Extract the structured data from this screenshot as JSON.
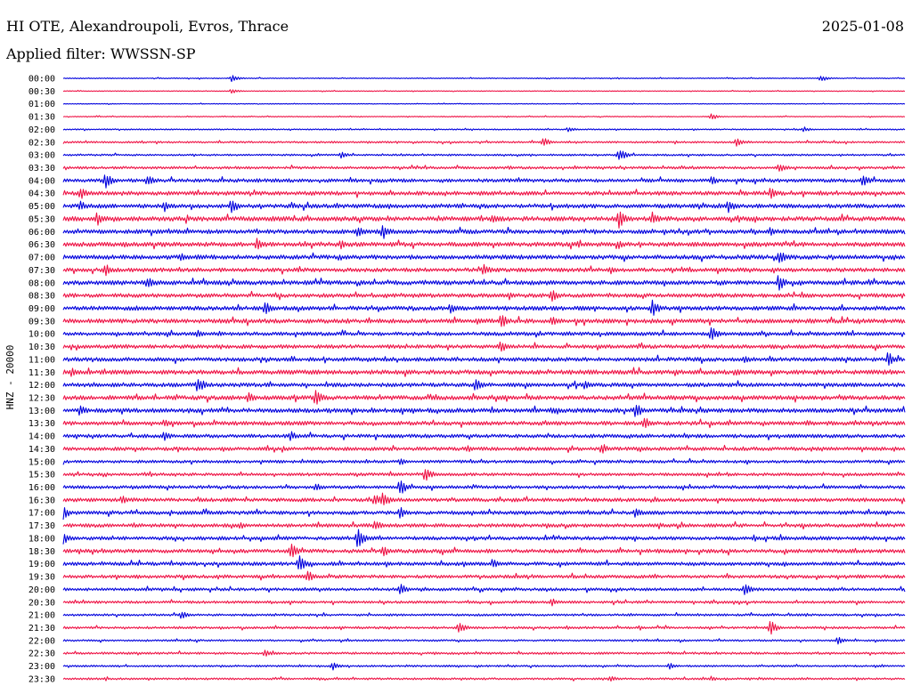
{
  "header": {
    "station": "HI OTE, Alexandroupoli, Evros, Thrace",
    "date": "2025-01-08",
    "filter": "Applied filter: WWSSN-SP"
  },
  "colors": {
    "blue": "#0000dd",
    "red": "#ee1144",
    "background": "#ffffff",
    "text": "#000000"
  },
  "chart_data": {
    "type": "line",
    "subtype": "helicorder",
    "title": "HI OTE, Alexandroupoli, Evros, Thrace",
    "ylabel": "HNZ - 20000",
    "legend": "none",
    "grid": false,
    "row_labels": [
      "00:00",
      "00:30",
      "01:00",
      "01:30",
      "02:00",
      "02:30",
      "03:00",
      "03:30",
      "04:00",
      "04:30",
      "05:00",
      "05:30",
      "06:00",
      "06:30",
      "07:00",
      "07:30",
      "08:00",
      "08:30",
      "09:00",
      "09:30",
      "10:00",
      "10:30",
      "11:00",
      "11:30",
      "12:00",
      "12:30",
      "13:00",
      "13:30",
      "14:00",
      "14:30",
      "15:00",
      "15:30",
      "16:00",
      "16:30",
      "17:00",
      "17:30",
      "18:00",
      "18:30",
      "19:00",
      "19:30",
      "20:00",
      "20:30",
      "21:00",
      "21:30",
      "22:00",
      "22:30",
      "23:00",
      "23:30"
    ],
    "row_colors": [
      "blue",
      "red",
      "blue",
      "red",
      "blue",
      "red",
      "blue",
      "red",
      "blue",
      "red",
      "blue",
      "red",
      "blue",
      "red",
      "blue",
      "red",
      "blue",
      "red",
      "blue",
      "red",
      "blue",
      "red",
      "blue",
      "red",
      "blue",
      "red",
      "blue",
      "red",
      "blue",
      "red",
      "blue",
      "red",
      "blue",
      "red",
      "blue",
      "red",
      "blue",
      "red",
      "blue",
      "red",
      "blue",
      "red",
      "blue",
      "red",
      "blue",
      "red",
      "blue",
      "red"
    ],
    "noise_level": [
      0.5,
      0.4,
      0.4,
      0.5,
      0.7,
      1.0,
      1.0,
      1.4,
      2.0,
      2.2,
      2.3,
      2.5,
      2.3,
      2.4,
      2.4,
      2.2,
      2.4,
      2.2,
      2.3,
      2.4,
      2.0,
      2.1,
      2.2,
      2.4,
      2.2,
      2.4,
      2.4,
      2.2,
      2.0,
      2.0,
      1.6,
      1.6,
      1.8,
      2.0,
      2.0,
      2.0,
      2.0,
      2.1,
      2.0,
      1.8,
      1.6,
      1.4,
      1.2,
      1.3,
      1.0,
      1.2,
      1.0,
      1.1
    ],
    "events": [
      [
        [
          0.2,
          4
        ],
        [
          0.9,
          4
        ]
      ],
      [
        [
          0.2,
          3
        ]
      ],
      [],
      [
        [
          0.77,
          4
        ]
      ],
      [
        [
          0.88,
          3
        ],
        [
          0.6,
          3
        ]
      ],
      [
        [
          0.57,
          6
        ],
        [
          0.8,
          5
        ]
      ],
      [
        [
          0.66,
          8
        ],
        [
          0.33,
          4
        ]
      ],
      [
        [
          0.85,
          6
        ],
        [
          0.53,
          3
        ]
      ],
      [
        [
          0.05,
          10
        ],
        [
          0.1,
          7
        ],
        [
          0.77,
          6
        ],
        [
          0.95,
          8
        ]
      ],
      [
        [
          0.02,
          8
        ],
        [
          0.84,
          7
        ]
      ],
      [
        [
          0.02,
          7
        ],
        [
          0.12,
          7
        ],
        [
          0.2,
          9
        ],
        [
          0.79,
          8
        ]
      ],
      [
        [
          0.04,
          9
        ],
        [
          0.51,
          6
        ],
        [
          0.66,
          12
        ],
        [
          0.7,
          8
        ]
      ],
      [
        [
          0.35,
          7
        ],
        [
          0.38,
          9
        ],
        [
          0.84,
          6
        ]
      ],
      [
        [
          0.23,
          8
        ],
        [
          0.33,
          6
        ],
        [
          0.66,
          5
        ]
      ],
      [
        [
          0.14,
          6
        ],
        [
          0.85,
          9
        ]
      ],
      [
        [
          0.05,
          8
        ],
        [
          0.5,
          7
        ],
        [
          0.65,
          5
        ]
      ],
      [
        [
          0.1,
          7
        ],
        [
          0.85,
          10
        ]
      ],
      [
        [
          0.58,
          8
        ],
        [
          0.53,
          5
        ]
      ],
      [
        [
          0.24,
          8
        ],
        [
          0.46,
          6
        ],
        [
          0.7,
          10
        ]
      ],
      [
        [
          0.52,
          9
        ],
        [
          0.58,
          6
        ]
      ],
      [
        [
          0.77,
          9
        ],
        [
          0.16,
          5
        ]
      ],
      [
        [
          0.52,
          7
        ]
      ],
      [
        [
          0.81,
          5
        ],
        [
          0.98,
          9
        ]
      ],
      [
        [
          0.01,
          6
        ],
        [
          0.8,
          5
        ]
      ],
      [
        [
          0.16,
          10
        ],
        [
          0.49,
          8
        ],
        [
          0.62,
          6
        ]
      ],
      [
        [
          0.22,
          7
        ],
        [
          0.3,
          10
        ]
      ],
      [
        [
          0.02,
          7
        ],
        [
          0.68,
          10
        ],
        [
          0.58,
          5
        ]
      ],
      [
        [
          0.69,
          8
        ],
        [
          0.12,
          5
        ]
      ],
      [
        [
          0.12,
          6
        ],
        [
          0.27,
          6
        ]
      ],
      [
        [
          0.64,
          7
        ],
        [
          0.48,
          5
        ]
      ],
      [
        [
          0.4,
          5
        ]
      ],
      [
        [
          0.43,
          9
        ]
      ],
      [
        [
          0.4,
          10
        ],
        [
          0.3,
          5
        ]
      ],
      [
        [
          0.37,
          8
        ],
        [
          0.38,
          10
        ],
        [
          0.07,
          6
        ]
      ],
      [
        [
          0.0,
          8
        ],
        [
          0.4,
          7
        ],
        [
          0.68,
          7
        ]
      ],
      [
        [
          0.37,
          7
        ],
        [
          0.21,
          5
        ]
      ],
      [
        [
          0.0,
          7
        ],
        [
          0.35,
          12
        ]
      ],
      [
        [
          0.27,
          10
        ],
        [
          0.38,
          7
        ]
      ],
      [
        [
          0.28,
          12
        ],
        [
          0.51,
          6
        ]
      ],
      [
        [
          0.29,
          8
        ]
      ],
      [
        [
          0.4,
          7
        ],
        [
          0.81,
          7
        ]
      ],
      [
        [
          0.58,
          5
        ]
      ],
      [
        [
          0.14,
          5
        ]
      ],
      [
        [
          0.47,
          8
        ],
        [
          0.84,
          9
        ]
      ],
      [
        [
          0.92,
          5
        ]
      ],
      [
        [
          0.24,
          5
        ]
      ],
      [
        [
          0.32,
          5
        ],
        [
          0.72,
          4
        ]
      ],
      [
        [
          0.65,
          4
        ],
        [
          0.77,
          3
        ]
      ]
    ]
  }
}
